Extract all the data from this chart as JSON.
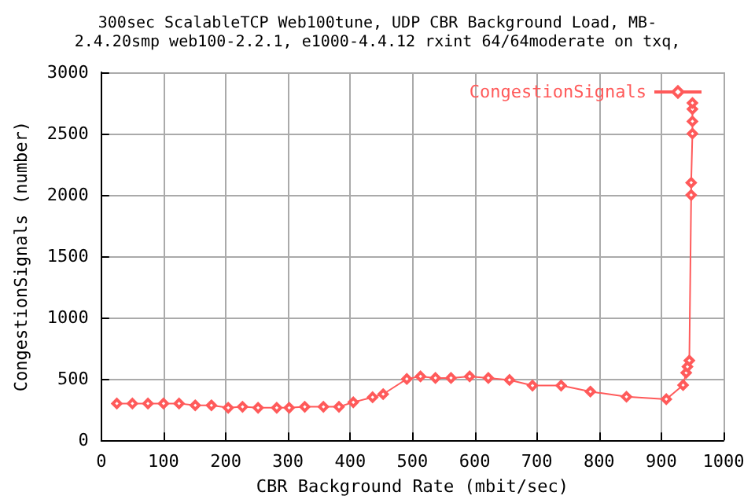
{
  "chart_data": {
    "type": "line",
    "title": "300sec ScalableTCP Web100tune, UDP CBR Background Load, MB-\n2.4.20smp web100-2.2.1, e1000-4.4.12 rxint 64/64moderate on txq,",
    "xlabel": "CBR Background Rate (mbit/sec)",
    "ylabel": "CongestionSignals (number)",
    "x": [
      25,
      50,
      75,
      100,
      125,
      151,
      177,
      204,
      227,
      252,
      282,
      302,
      327,
      357,
      382,
      405,
      436,
      453,
      491,
      513,
      537,
      562,
      592,
      622,
      656,
      693,
      739,
      786,
      844,
      908,
      935,
      940,
      942,
      945,
      948,
      948,
      950,
      950,
      950,
      950
    ],
    "series": [
      {
        "name": "CongestionSignals",
        "color": "#ff5a5a",
        "values": [
          300,
          300,
          300,
          300,
          300,
          285,
          285,
          265,
          273,
          265,
          265,
          265,
          273,
          273,
          273,
          310,
          351,
          376,
          500,
          521,
          508,
          508,
          521,
          508,
          492,
          446,
          446,
          397,
          355,
          335,
          450,
          550,
          600,
          650,
          2000,
          2100,
          2500,
          2600,
          2700,
          2750
        ]
      }
    ],
    "xlim": [
      0,
      1000
    ],
    "xticks": [
      0,
      100,
      200,
      300,
      400,
      500,
      600,
      700,
      800,
      900,
      1000
    ],
    "ylim": [
      0,
      3000
    ],
    "yticks": [
      0,
      500,
      1000,
      1500,
      2000,
      2500,
      3000
    ],
    "grid": true,
    "legend": "top right",
    "marker": "diamond",
    "line_style": "solid"
  }
}
